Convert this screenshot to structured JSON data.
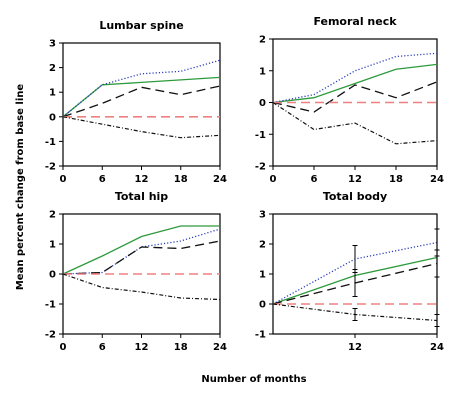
{
  "figure": {
    "ylabel": "Mean percent change from base line",
    "xlabel": "Number of months"
  },
  "chart_data": [
    {
      "type": "line",
      "title": "Lumbar spine",
      "ylim": [
        -2,
        3
      ],
      "yticks": [
        -2,
        -1,
        0,
        1,
        2,
        3
      ],
      "xlim": [
        0,
        24
      ],
      "xticks": [
        0,
        6,
        12,
        18,
        24
      ],
      "series": [
        {
          "style": "green-solid",
          "x": [
            0,
            6,
            12,
            18,
            24
          ],
          "y": [
            0,
            1.3,
            1.4,
            1.5,
            1.6
          ]
        },
        {
          "style": "blue-dotted",
          "x": [
            0,
            6,
            12,
            18,
            24
          ],
          "y": [
            0,
            1.3,
            1.75,
            1.85,
            2.3
          ]
        },
        {
          "style": "black-dashed",
          "x": [
            0,
            6,
            12,
            18,
            24
          ],
          "y": [
            0,
            0.55,
            1.2,
            0.9,
            1.25
          ]
        },
        {
          "style": "red-dashed",
          "x": [
            0,
            6,
            12,
            18,
            24
          ],
          "y": [
            0,
            0,
            0,
            0,
            0
          ]
        },
        {
          "style": "black-dashdot",
          "x": [
            0,
            6,
            12,
            18,
            24
          ],
          "y": [
            0,
            -0.3,
            -0.6,
            -0.85,
            -0.75
          ]
        }
      ]
    },
    {
      "type": "line",
      "title": "Femoral neck",
      "ylim": [
        -2,
        2
      ],
      "yticks": [
        -2,
        -1,
        0,
        1,
        2
      ],
      "xlim": [
        0,
        24
      ],
      "xticks": [
        0,
        6,
        12,
        18,
        24
      ],
      "series": [
        {
          "style": "green-solid",
          "x": [
            0,
            6,
            12,
            18,
            24
          ],
          "y": [
            0,
            0.15,
            0.6,
            1.05,
            1.2
          ]
        },
        {
          "style": "blue-dotted",
          "x": [
            0,
            6,
            12,
            18,
            24
          ],
          "y": [
            0,
            0.25,
            1.0,
            1.45,
            1.55
          ]
        },
        {
          "style": "black-dashed",
          "x": [
            0,
            6,
            12,
            18,
            24
          ],
          "y": [
            0,
            -0.3,
            0.55,
            0.15,
            0.65
          ]
        },
        {
          "style": "red-dashed",
          "x": [
            0,
            6,
            12,
            18,
            24
          ],
          "y": [
            0,
            0,
            0,
            0,
            0
          ]
        },
        {
          "style": "black-dashdot",
          "x": [
            0,
            6,
            12,
            18,
            24
          ],
          "y": [
            0,
            -0.85,
            -0.65,
            -1.3,
            -1.2
          ]
        }
      ]
    },
    {
      "type": "line",
      "title": "Total hip",
      "ylim": [
        -2,
        2
      ],
      "yticks": [
        -2,
        -1,
        0,
        1,
        2
      ],
      "xlim": [
        0,
        24
      ],
      "xticks": [
        0,
        6,
        12,
        18,
        24
      ],
      "series": [
        {
          "style": "green-solid",
          "x": [
            0,
            6,
            12,
            18,
            24
          ],
          "y": [
            0,
            0.6,
            1.25,
            1.6,
            1.6
          ]
        },
        {
          "style": "blue-dotted",
          "x": [
            0,
            6,
            12,
            18,
            24
          ],
          "y": [
            0,
            0.05,
            0.9,
            1.1,
            1.5
          ]
        },
        {
          "style": "black-dashed",
          "x": [
            0,
            6,
            12,
            18,
            24
          ],
          "y": [
            0,
            0.05,
            0.9,
            0.85,
            1.1
          ]
        },
        {
          "style": "red-dashed",
          "x": [
            0,
            6,
            12,
            18,
            24
          ],
          "y": [
            0,
            0,
            0,
            0,
            0
          ]
        },
        {
          "style": "black-dashdot",
          "x": [
            0,
            6,
            12,
            18,
            24
          ],
          "y": [
            0,
            -0.45,
            -0.6,
            -0.8,
            -0.85
          ]
        }
      ]
    },
    {
      "type": "line",
      "title": "Total body",
      "ylim": [
        -1,
        3
      ],
      "yticks": [
        -1,
        0,
        1,
        2,
        3
      ],
      "xlim": [
        0,
        24
      ],
      "xticks": [
        12,
        24
      ],
      "series": [
        {
          "style": "green-solid",
          "x": [
            0,
            12,
            24
          ],
          "y": [
            0,
            0.95,
            1.55
          ]
        },
        {
          "style": "blue-dotted",
          "x": [
            0,
            12,
            24
          ],
          "y": [
            0,
            1.5,
            2.05
          ],
          "err": [
            0,
            0.45,
            0.45
          ]
        },
        {
          "style": "black-dashed",
          "x": [
            0,
            12,
            24
          ],
          "y": [
            0,
            0.7,
            1.35
          ],
          "err": [
            0,
            0.45,
            0.45
          ]
        },
        {
          "style": "red-dashed",
          "x": [
            0,
            12,
            24
          ],
          "y": [
            0,
            0,
            0
          ]
        },
        {
          "style": "black-dashdot",
          "x": [
            0,
            12,
            24
          ],
          "y": [
            0,
            -0.35,
            -0.55
          ],
          "err": [
            0,
            0.2,
            0.2
          ]
        }
      ]
    }
  ]
}
